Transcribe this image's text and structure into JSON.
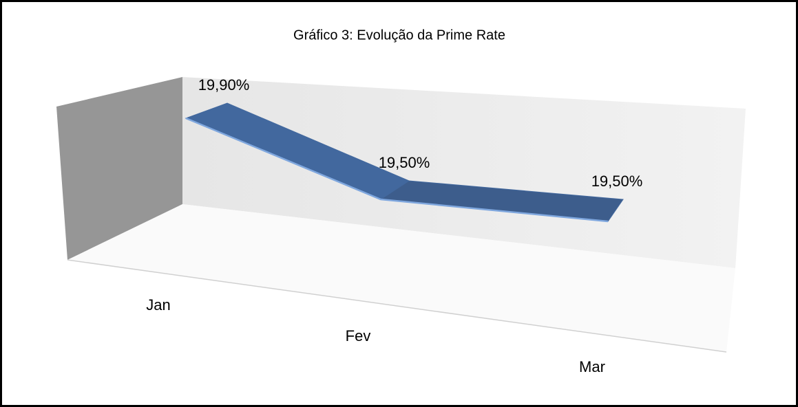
{
  "chart_data": {
    "type": "line",
    "title": "Gráfico 3: Evolução da Prime Rate",
    "categories": [
      "Jan",
      "Fev",
      "Mar"
    ],
    "series": [
      {
        "name": null,
        "color": "#42689e",
        "values": [
          19.9,
          19.5,
          19.5
        ],
        "value_labels": [
          "19,90%",
          "19,50%",
          "19,50%"
        ]
      }
    ]
  }
}
